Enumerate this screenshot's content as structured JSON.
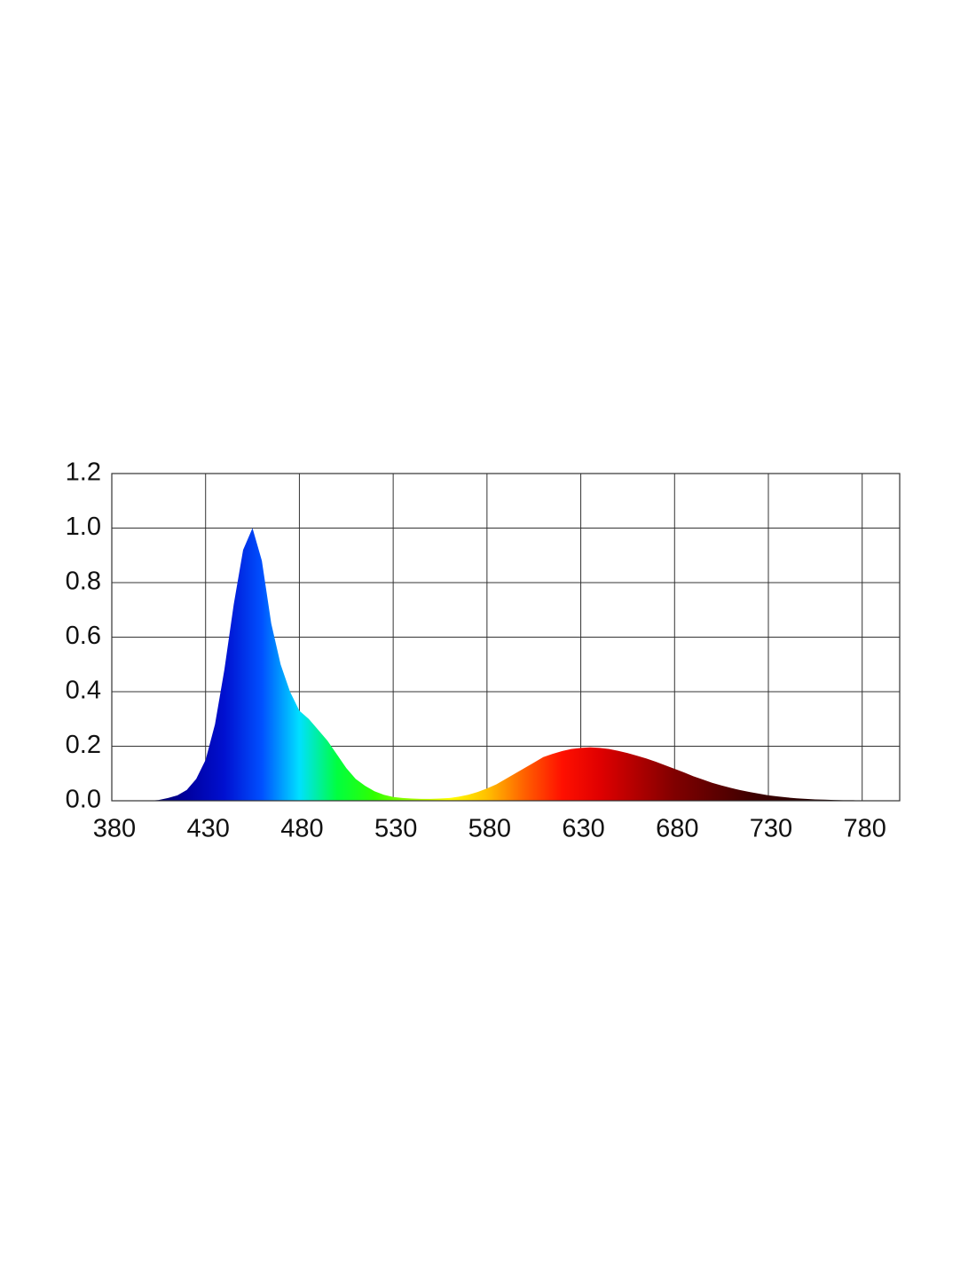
{
  "chart_data": {
    "type": "area",
    "x": [
      400,
      405,
      410,
      415,
      420,
      425,
      430,
      435,
      440,
      445,
      450,
      455,
      460,
      465,
      470,
      475,
      480,
      485,
      490,
      495,
      500,
      505,
      510,
      515,
      520,
      525,
      530,
      535,
      540,
      545,
      550,
      555,
      560,
      565,
      570,
      575,
      580,
      585,
      590,
      595,
      600,
      605,
      610,
      615,
      620,
      625,
      630,
      635,
      640,
      645,
      650,
      655,
      660,
      665,
      670,
      675,
      680,
      685,
      690,
      695,
      700,
      705,
      710,
      715,
      720,
      725,
      730,
      735,
      740,
      745,
      750,
      755,
      760,
      765,
      770,
      775,
      780,
      785,
      790,
      795,
      800
    ],
    "values": [
      0,
      0.003,
      0.01,
      0.02,
      0.04,
      0.08,
      0.15,
      0.28,
      0.48,
      0.72,
      0.92,
      1.0,
      0.88,
      0.65,
      0.5,
      0.4,
      0.33,
      0.3,
      0.26,
      0.22,
      0.17,
      0.12,
      0.08,
      0.055,
      0.035,
      0.022,
      0.014,
      0.01,
      0.008,
      0.007,
      0.007,
      0.008,
      0.01,
      0.015,
      0.022,
      0.032,
      0.045,
      0.06,
      0.08,
      0.1,
      0.12,
      0.14,
      0.16,
      0.172,
      0.182,
      0.19,
      0.194,
      0.196,
      0.194,
      0.19,
      0.183,
      0.175,
      0.165,
      0.155,
      0.143,
      0.13,
      0.117,
      0.104,
      0.09,
      0.078,
      0.066,
      0.056,
      0.047,
      0.039,
      0.032,
      0.026,
      0.02,
      0.016,
      0.012,
      0.009,
      0.007,
      0.005,
      0.004,
      0.003,
      0.002,
      0.002,
      0.001,
      0.001,
      0.001,
      0,
      0
    ],
    "colors": [
      "#000030",
      "#000060",
      "#0000a0",
      "#0010d0",
      "#0050ff",
      "#00e0ff",
      "#00ff40",
      "#30ff00",
      "#a0ff00",
      "#ffff00",
      "#ffc000",
      "#ff6000",
      "#ff1000",
      "#e00000",
      "#b00000",
      "#800000",
      "#600000",
      "#400000",
      "#300000",
      "#200000",
      "#100000",
      "#000000"
    ],
    "xlim": [
      380,
      800
    ],
    "xticks": [
      380,
      430,
      480,
      530,
      580,
      630,
      680,
      730,
      780
    ],
    "ylim": [
      0,
      1.2
    ],
    "yticks": [
      {
        "value": 0,
        "label": "0.0"
      },
      0.2,
      0.4,
      0.6,
      0.8,
      {
        "value": 1,
        "label": "1.0"
      },
      1.2
    ],
    "grid": true
  }
}
